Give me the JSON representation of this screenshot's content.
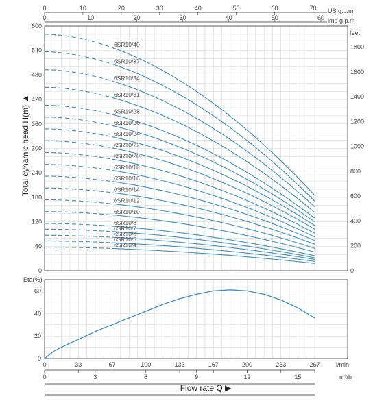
{
  "chart_data": [
    {
      "type": "line",
      "ylabel": "Total dynamic head H(m) ▲",
      "right_unit": "feet",
      "top_units": [
        "US g.p.m",
        "imp g.p.m"
      ],
      "x_unit": "m³/h",
      "xlim": [
        0,
        16
      ],
      "ylim": [
        0,
        600
      ],
      "grid": true,
      "y_ticks": [
        0,
        60,
        120,
        180,
        240,
        300,
        360,
        420,
        480,
        540,
        600
      ],
      "feet_ticks": [
        0,
        200,
        400,
        600,
        800,
        1000,
        1200,
        1400,
        1600,
        1800
      ],
      "us_gpm_ticks": [
        0,
        10,
        20,
        30,
        40,
        50,
        60,
        70
      ],
      "imp_gpm_ticks": [
        0,
        10,
        20,
        30,
        40,
        50,
        60
      ],
      "recommended_range_start": 4,
      "series": [
        {
          "name": "6SR10/40",
          "shutoff": 580,
          "end": 185
        },
        {
          "name": "6SR10/37",
          "shutoff": 537,
          "end": 171
        },
        {
          "name": "6SR10/34",
          "shutoff": 493,
          "end": 157
        },
        {
          "name": "6SR10/31",
          "shutoff": 450,
          "end": 143
        },
        {
          "name": "6SR10/28",
          "shutoff": 406,
          "end": 129
        },
        {
          "name": "6SR10/26",
          "shutoff": 377,
          "end": 120
        },
        {
          "name": "6SR10/24",
          "shutoff": 348,
          "end": 111
        },
        {
          "name": "6SR10/22",
          "shutoff": 319,
          "end": 102
        },
        {
          "name": "6SR10/20",
          "shutoff": 290,
          "end": 92
        },
        {
          "name": "6SR10/18",
          "shutoff": 261,
          "end": 83
        },
        {
          "name": "6SR10/16",
          "shutoff": 232,
          "end": 74
        },
        {
          "name": "6SR10/14",
          "shutoff": 203,
          "end": 65
        },
        {
          "name": "6SR10/12",
          "shutoff": 174,
          "end": 55
        },
        {
          "name": "6SR10/10",
          "shutoff": 145,
          "end": 46
        },
        {
          "name": "6SR10/8",
          "shutoff": 116,
          "end": 37
        },
        {
          "name": "6SR10/7",
          "shutoff": 102,
          "end": 32
        },
        {
          "name": "6SR10/6",
          "shutoff": 87,
          "end": 28
        },
        {
          "name": "6SR10/5",
          "shutoff": 73,
          "end": 23
        },
        {
          "name": "6SR10/4",
          "shutoff": 58,
          "end": 18
        }
      ]
    },
    {
      "type": "line",
      "ylabel": "Eta(%)",
      "xlabel": "Flow rate Q ▶",
      "ylim": [
        0,
        70
      ],
      "xlim": [
        0,
        16
      ],
      "y_ticks": [
        0,
        20,
        40,
        60
      ],
      "lmin_ticks": [
        "0",
        "33",
        "67",
        "100",
        "133",
        "167",
        "200",
        "233",
        "267"
      ],
      "lmin_unit": "l/min",
      "m3h_ticks": [
        0,
        3,
        6,
        9,
        12,
        15
      ],
      "m3h_unit": "m³/h",
      "series": [
        {
          "x": [
            0,
            0.5,
            1,
            2,
            3,
            4,
            5,
            6,
            7,
            8,
            9,
            10,
            11,
            12,
            13,
            14,
            15,
            16
          ],
          "y": [
            0,
            6,
            10,
            17,
            24,
            30,
            36,
            42,
            48,
            53,
            57,
            60,
            61,
            60,
            57,
            52,
            45,
            36
          ]
        }
      ]
    }
  ],
  "colors": {
    "curve": "#3a8fc4",
    "grid": "#d4d4d4",
    "axis": "#333333",
    "text": "#444444"
  }
}
